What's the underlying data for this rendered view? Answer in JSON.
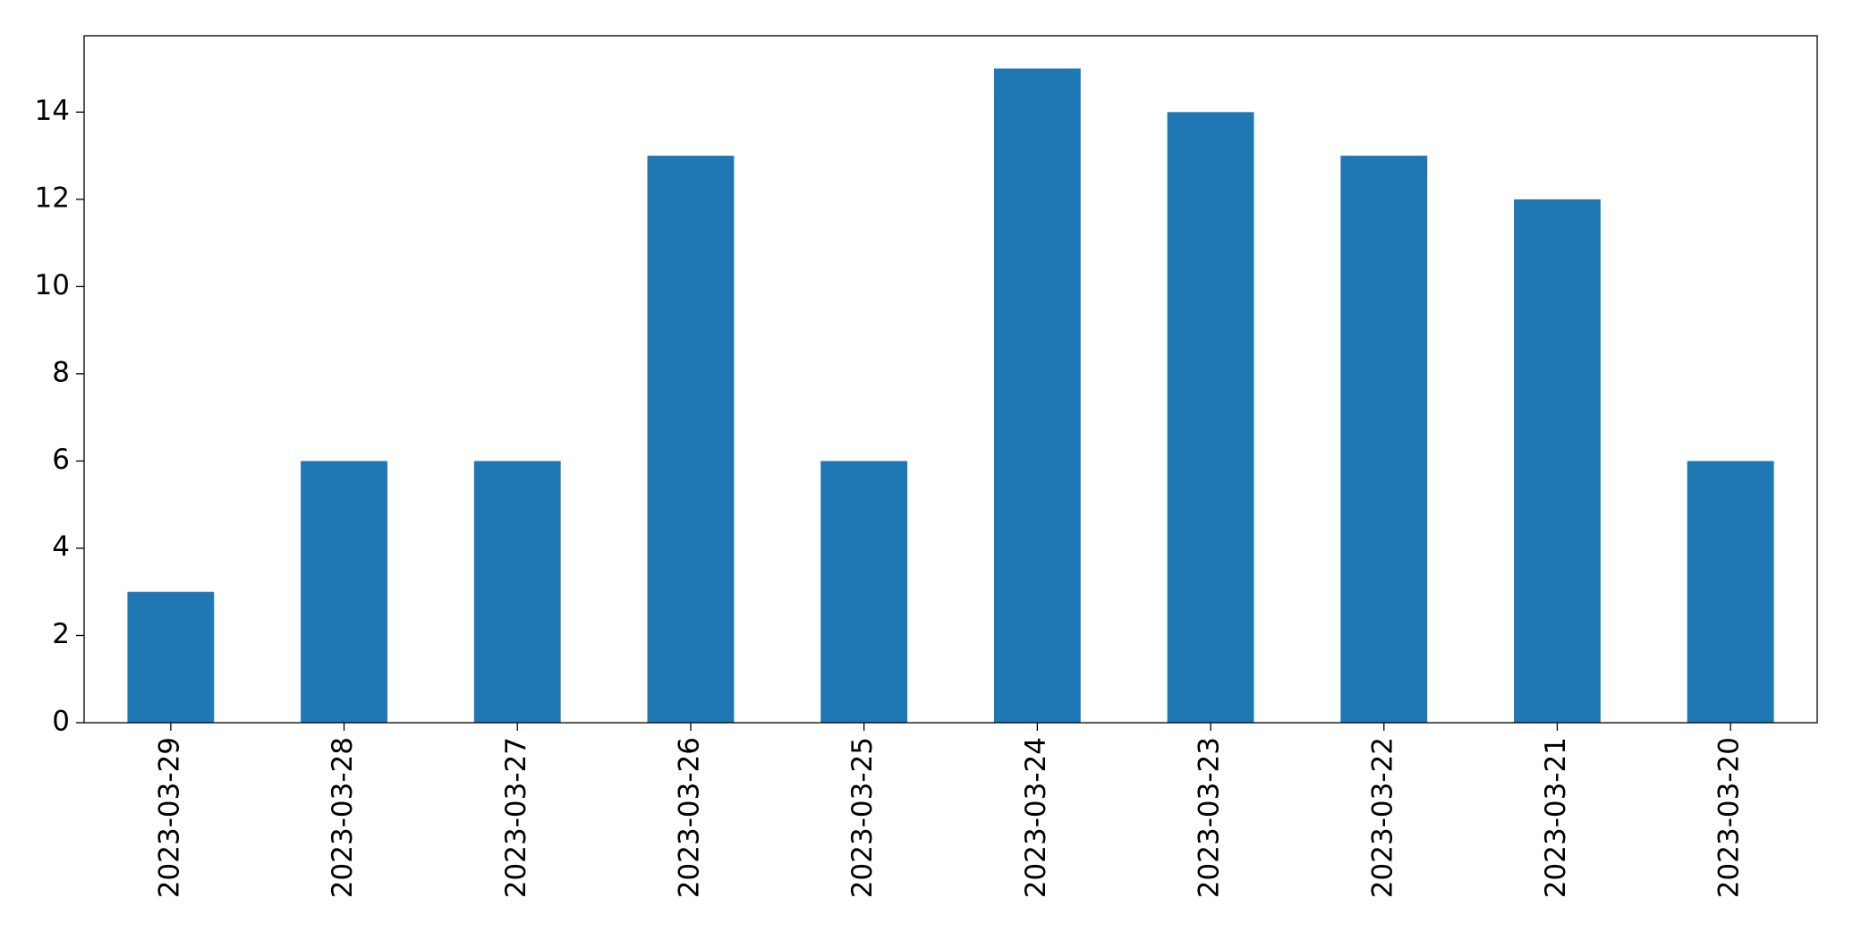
{
  "chart_data": {
    "type": "bar",
    "categories": [
      "2023-03-29",
      "2023-03-28",
      "2023-03-27",
      "2023-03-26",
      "2023-03-25",
      "2023-03-24",
      "2023-03-23",
      "2023-03-22",
      "2023-03-21",
      "2023-03-20"
    ],
    "values": [
      3,
      6,
      6,
      13,
      6,
      15,
      14,
      13,
      12,
      6
    ],
    "color": "#1f77b4",
    "ylim": [
      0,
      15.75
    ],
    "yticks": [
      0,
      2,
      4,
      6,
      8,
      10,
      12,
      14
    ],
    "grid": false
  }
}
